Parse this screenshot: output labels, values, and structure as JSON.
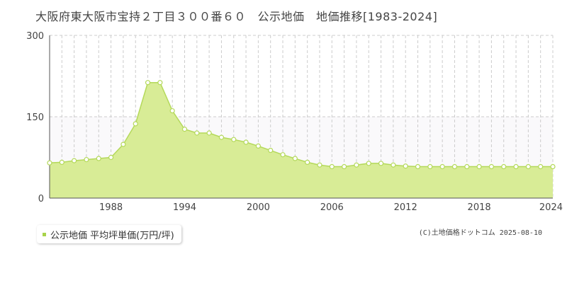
{
  "title": "大阪府東大阪市宝持２丁目３００番６０　公示地価　地価推移[1983-2024]",
  "legend_label": "公示地価 平均坪単価(万円/坪)",
  "copyright": "(C)土地価格ドットコム 2025-08-10",
  "colors": {
    "area_fill": "#d8ec96",
    "area_line": "#b4d95a",
    "point_fill": "#ffffff",
    "legend_swatch": "#a8d34a",
    "grid": "#cccccc",
    "axis": "#555555"
  },
  "chart_data": {
    "type": "area",
    "title": "大阪府東大阪市宝持２丁目３００番６０　公示地価　地価推移[1983-2024]",
    "xlabel": "",
    "ylabel": "",
    "x": [
      1983,
      1984,
      1985,
      1986,
      1987,
      1988,
      1989,
      1990,
      1991,
      1992,
      1993,
      1994,
      1995,
      1996,
      1997,
      1998,
      1999,
      2000,
      2001,
      2002,
      2003,
      2004,
      2005,
      2006,
      2007,
      2008,
      2009,
      2010,
      2011,
      2012,
      2013,
      2014,
      2015,
      2016,
      2017,
      2018,
      2019,
      2020,
      2021,
      2022,
      2023,
      2024
    ],
    "series": [
      {
        "name": "公示地価 平均坪単価(万円/坪)",
        "values": [
          65,
          66,
          69,
          71,
          73,
          75,
          99,
          137,
          213,
          213,
          161,
          127,
          120,
          120,
          112,
          108,
          103,
          96,
          88,
          80,
          73,
          66,
          61,
          58,
          58,
          61,
          64,
          64,
          61,
          59,
          58,
          58,
          58,
          58,
          58,
          58,
          58,
          58,
          58,
          58,
          58,
          58
        ]
      }
    ],
    "xlim": [
      1983,
      2024
    ],
    "ylim": [
      0,
      300
    ],
    "y_ticks": [
      0,
      150,
      300
    ],
    "x_tick_labels": [
      1988,
      1994,
      2000,
      2006,
      2012,
      2018,
      2024
    ],
    "grid": true,
    "legend_position": "bottom-left"
  }
}
